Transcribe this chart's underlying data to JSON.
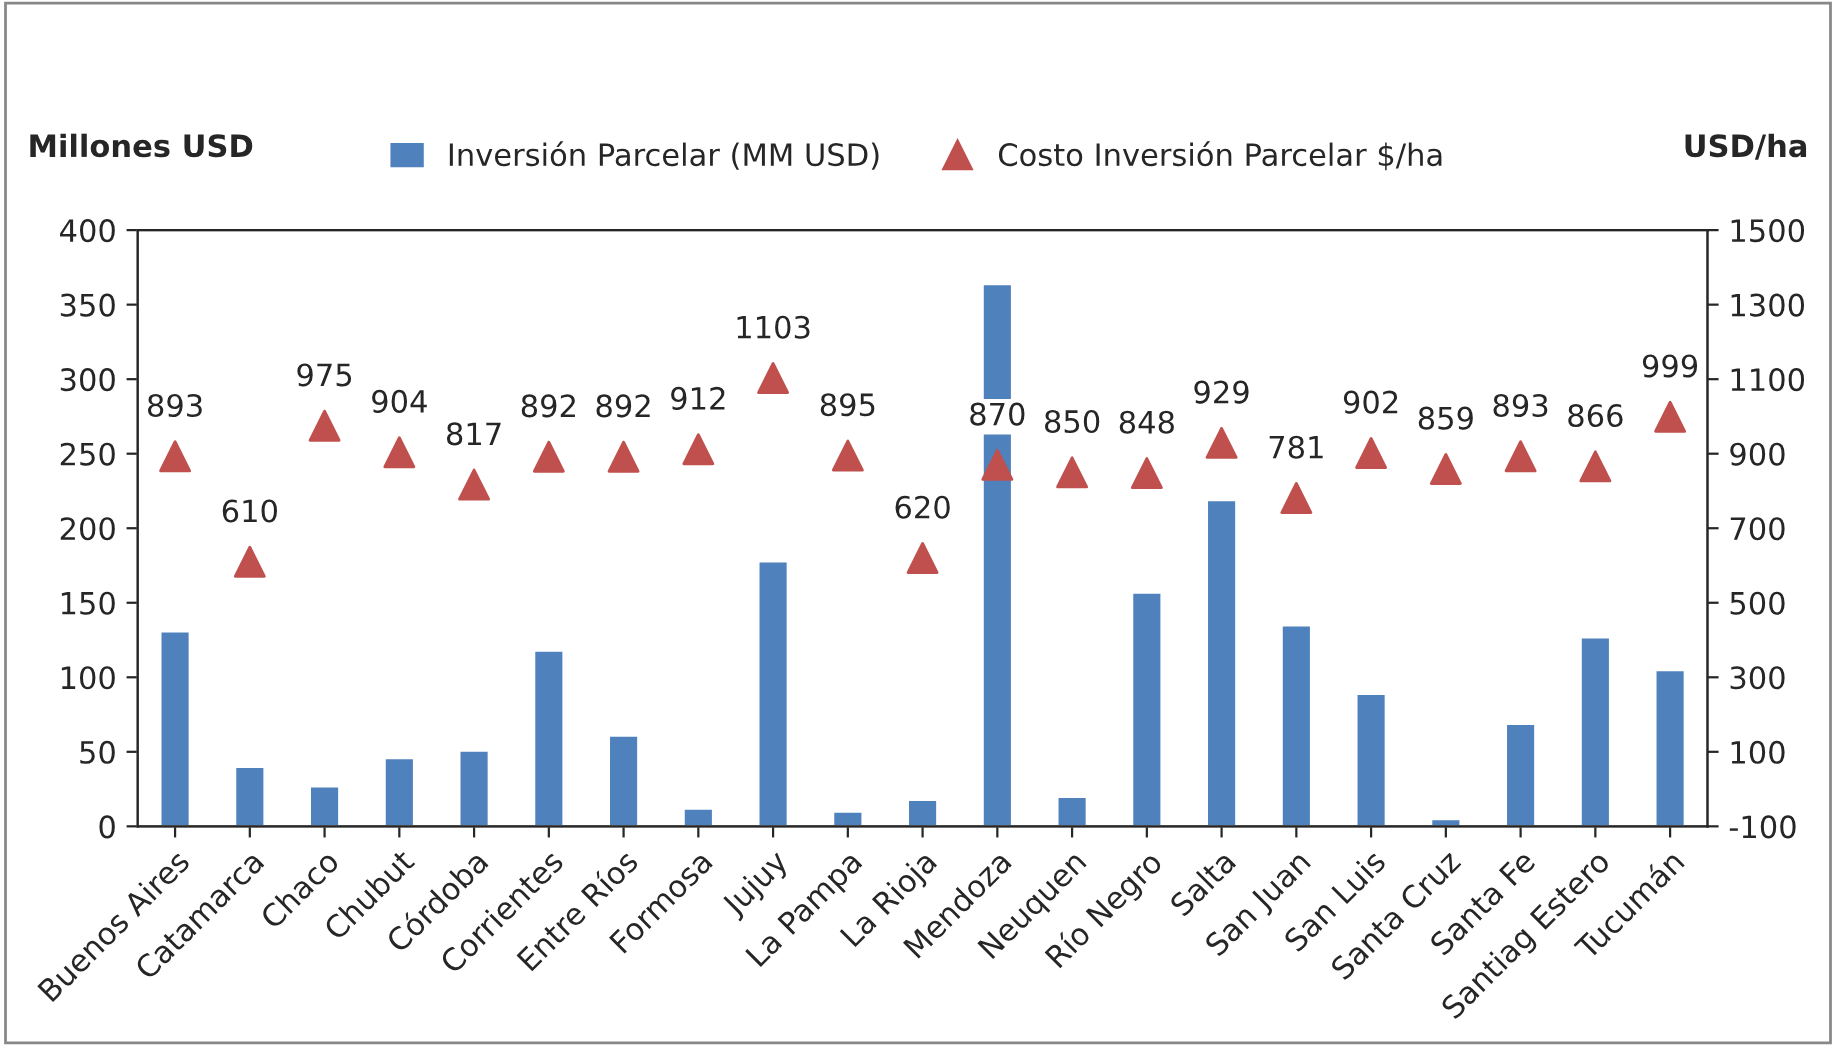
{
  "chart_data": {
    "type": "bar",
    "categories": [
      "Buenos Aires",
      "Catamarca",
      "Chaco",
      "Chubut",
      "Córdoba",
      "Corrientes",
      "Entre Ríos",
      "Formosa",
      "Jujuy",
      "La Pampa",
      "La Rioja",
      "Mendoza",
      "Neuquen",
      "Río Negro",
      "Salta",
      "San Juan",
      "San Luis",
      "Santa Cruz",
      "Santa Fe",
      "Santiag Estero",
      "Tucumán"
    ],
    "ylabel": "Millones USD",
    "y2label": "USD/ha",
    "series": [
      {
        "name": "Inversión Parcelar (MM USD)",
        "color": "#4f81bd",
        "values": [
          131,
          40,
          27,
          46,
          51,
          118,
          61,
          12,
          178,
          10,
          18,
          364,
          20,
          157,
          219,
          135,
          89,
          5,
          69,
          127,
          105
        ]
      },
      {
        "name": "Costo Inversión Parcelar $/ha",
        "type": "scatter",
        "axis": "y2",
        "color": "#c0504d",
        "marker": "triangle",
        "values": [
          893,
          610,
          975,
          904,
          817,
          892,
          892,
          912,
          1103,
          895,
          620,
          870,
          850,
          848,
          929,
          781,
          902,
          859,
          893,
          866,
          999
        ],
        "value_labels": [
          "893",
          "610",
          "975",
          "904",
          "817",
          "892",
          "892",
          "912",
          "1103",
          "895",
          "620",
          "870",
          "850",
          "848",
          "929",
          "781",
          "902",
          "859",
          "893",
          "866",
          "999"
        ]
      }
    ],
    "ylim": [
      0,
      400
    ],
    "yticks": [
      0,
      50,
      100,
      150,
      200,
      250,
      300,
      350,
      400
    ],
    "y2lim": [
      -100,
      1500
    ],
    "y2ticks": [
      {
        "value": -100,
        "label": "-100"
      },
      100,
      300,
      500,
      700,
      900,
      1100,
      1300,
      1500
    ],
    "grid": false,
    "legend": "top"
  }
}
